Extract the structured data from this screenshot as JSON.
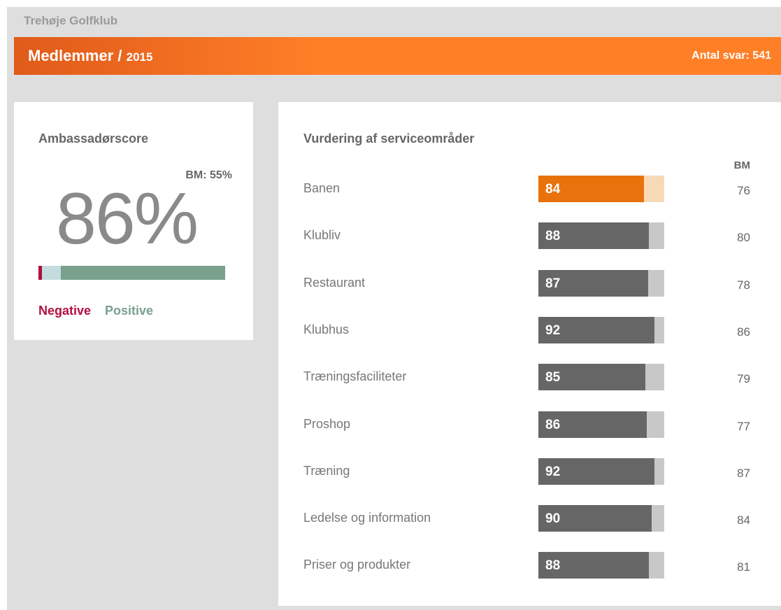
{
  "header": {
    "club": "Trehøje Golfklub",
    "title": "Medlemmer /",
    "year": "2015",
    "responses": "Antal svar: 541"
  },
  "ambassador": {
    "title": "Ambassadørscore",
    "benchmark": "BM: 55%",
    "score": "86%",
    "segments": [
      {
        "name": "Negative",
        "value": 2,
        "color": "#b0103f"
      },
      {
        "name": null,
        "value": 10,
        "color": "#c5dcdf"
      },
      {
        "name": "Positive",
        "value": 88,
        "color": "#7aa08e"
      }
    ]
  },
  "services": {
    "title": "Vurdering af serviceområder",
    "bm_header": "BM",
    "rows": [
      {
        "label": "Banen",
        "value": 84,
        "bm": "76",
        "color": "#e8720c",
        "track": "#f7d9b8"
      },
      {
        "label": "Klubliv",
        "value": 88,
        "bm": "80",
        "color": "#666666",
        "track": "#c8c8c8"
      },
      {
        "label": "Restaurant",
        "value": 87,
        "bm": "78",
        "color": "#666666",
        "track": "#c8c8c8"
      },
      {
        "label": "Klubhus",
        "value": 92,
        "bm": "86",
        "color": "#666666",
        "track": "#c8c8c8"
      },
      {
        "label": "Træningsfaciliteter",
        "value": 85,
        "bm": "79",
        "color": "#666666",
        "track": "#c8c8c8"
      },
      {
        "label": "Proshop",
        "value": 86,
        "bm": "77",
        "color": "#666666",
        "track": "#c8c8c8"
      },
      {
        "label": "Træning",
        "value": 92,
        "bm": "87",
        "color": "#666666",
        "track": "#c8c8c8"
      },
      {
        "label": "Ledelse og information",
        "value": 90,
        "bm": "84",
        "color": "#666666",
        "track": "#c8c8c8"
      },
      {
        "label": "Priser og produkter",
        "value": 88,
        "bm": "81",
        "color": "#666666",
        "track": "#c8c8c8"
      }
    ]
  }
}
